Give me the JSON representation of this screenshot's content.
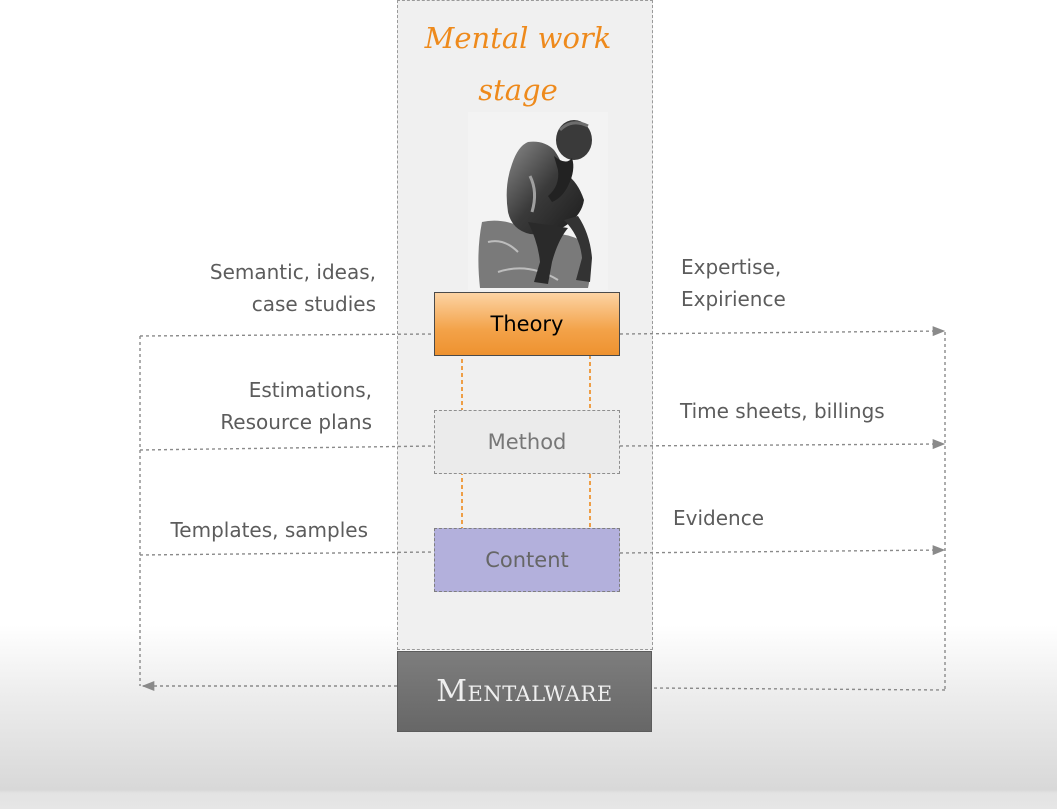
{
  "stage": {
    "title": "Mental work\nstage"
  },
  "layers": {
    "theory": "Theory",
    "method": "Method",
    "content": "Content"
  },
  "inputs": {
    "theory": "Semantic, ideas,\ncase studies",
    "method": "Estimations,\nResource plans",
    "content": "Templates, samples"
  },
  "outputs": {
    "theory": "Expertise,\nExpirience",
    "method": "Time sheets, billings",
    "content": "Evidence"
  },
  "footer": {
    "label": "Mentalware"
  },
  "colors": {
    "accent": "#ee8a1c",
    "theory_fill": "#f3a248",
    "content_fill": "#b3b0dc",
    "connector": "#8a8a8a"
  },
  "images": {
    "thinker": "thinker-statue-image"
  }
}
